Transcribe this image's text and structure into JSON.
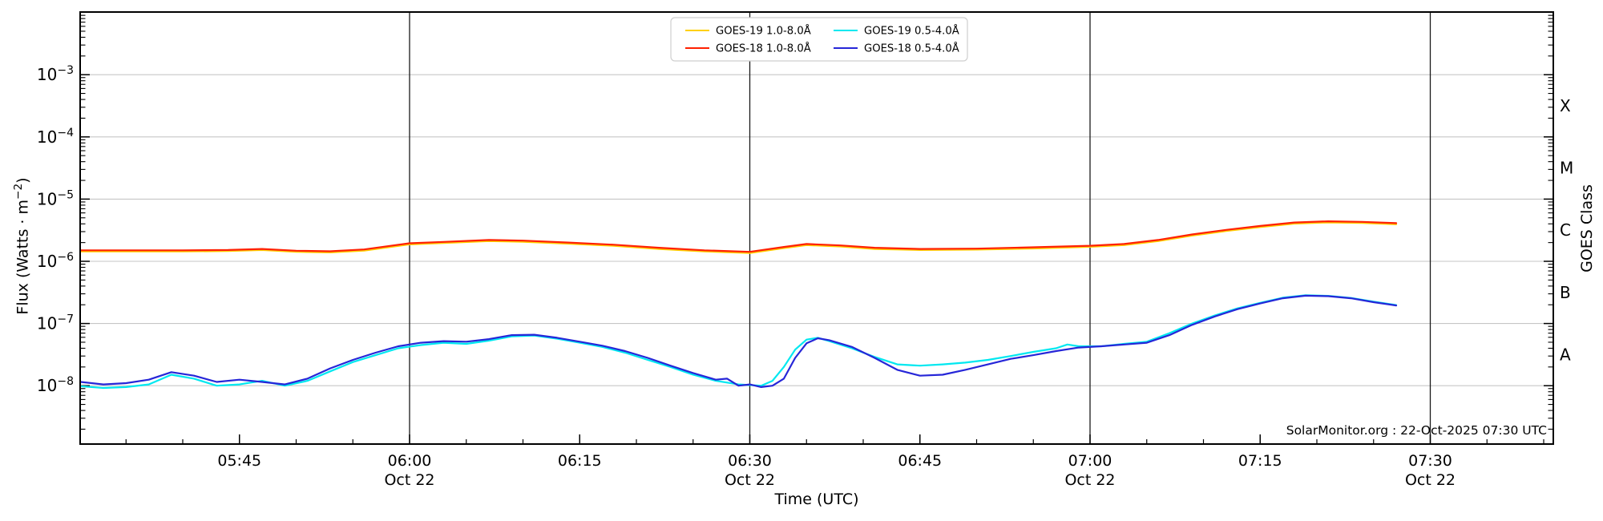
{
  "colors": {
    "background": "#ffffff",
    "frame": "#000000",
    "grid": "#c6c6c6",
    "date_line": "#1a1a1a",
    "legend_border": "#cfcfcf"
  },
  "chart_data": {
    "type": "line",
    "title": "",
    "xlabel": "Time (UTC)",
    "ylabel": {
      "pre": "Flux (Watts · m",
      "sup": "−2",
      "post": ")"
    },
    "ylabel_right": "GOES Class",
    "annotation": "SolarMonitor.org : 22-Oct-2025 07:30 UTC",
    "x_axis": {
      "ticks": [
        "05:45",
        "06:00",
        "06:15",
        "06:30",
        "06:45",
        "07:00",
        "07:15",
        "07:30"
      ],
      "date_ticks": [
        "06:00",
        "06:30",
        "07:00",
        "07:30"
      ],
      "date_label": "Oct 22",
      "range": [
        "05:31",
        "07:41"
      ],
      "minor_tick_minutes": 5
    },
    "y_axis": {
      "scale": "log",
      "tick_exponents": [
        -3,
        -4,
        -5,
        -6,
        -7,
        -8
      ],
      "range_exponents": [
        -9,
        -2
      ],
      "grid": true
    },
    "goes_classes": [
      {
        "label": "X",
        "mid_exponent": -3.5
      },
      {
        "label": "M",
        "mid_exponent": -4.5
      },
      {
        "label": "C",
        "mid_exponent": -5.5
      },
      {
        "label": "B",
        "mid_exponent": -6.5
      },
      {
        "label": "A",
        "mid_exponent": -7.5
      }
    ],
    "legend": {
      "position": "top-center",
      "columns": 2
    },
    "series": [
      {
        "id": "goes19-long",
        "name": "GOES-19 1.0-8.0Å",
        "color": "#ffd000",
        "points": [
          [
            "05:31",
            1.44e-06
          ],
          [
            "05:36",
            1.44e-06
          ],
          [
            "05:40",
            1.44e-06
          ],
          [
            "05:44",
            1.46e-06
          ],
          [
            "05:47",
            1.52e-06
          ],
          [
            "05:50",
            1.42e-06
          ],
          [
            "05:53",
            1.39e-06
          ],
          [
            "05:56",
            1.49e-06
          ],
          [
            "06:00",
            1.87e-06
          ],
          [
            "06:03",
            1.97e-06
          ],
          [
            "06:07",
            2.11e-06
          ],
          [
            "06:10",
            2.06e-06
          ],
          [
            "06:14",
            1.92e-06
          ],
          [
            "06:18",
            1.78e-06
          ],
          [
            "06:22",
            1.58e-06
          ],
          [
            "06:26",
            1.44e-06
          ],
          [
            "06:30",
            1.36e-06
          ],
          [
            "06:33",
            1.63e-06
          ],
          [
            "06:35",
            1.82e-06
          ],
          [
            "06:38",
            1.73e-06
          ],
          [
            "06:41",
            1.58e-06
          ],
          [
            "06:45",
            1.52e-06
          ],
          [
            "06:50",
            1.54e-06
          ],
          [
            "06:55",
            1.61e-06
          ],
          [
            "07:00",
            1.71e-06
          ],
          [
            "07:03",
            1.82e-06
          ],
          [
            "07:06",
            2.11e-06
          ],
          [
            "07:09",
            2.59e-06
          ],
          [
            "07:12",
            3.07e-06
          ],
          [
            "07:15",
            3.55e-06
          ],
          [
            "07:18",
            4.03e-06
          ],
          [
            "07:21",
            4.22e-06
          ],
          [
            "07:24",
            4.13e-06
          ],
          [
            "07:27",
            3.94e-06
          ]
        ]
      },
      {
        "id": "goes18-long",
        "name": "GOES-18 1.0-8.0Å",
        "color": "#ff2000",
        "points": [
          [
            "05:31",
            1.5e-06
          ],
          [
            "05:36",
            1.5e-06
          ],
          [
            "05:40",
            1.5e-06
          ],
          [
            "05:44",
            1.52e-06
          ],
          [
            "05:47",
            1.58e-06
          ],
          [
            "05:50",
            1.48e-06
          ],
          [
            "05:53",
            1.45e-06
          ],
          [
            "05:56",
            1.55e-06
          ],
          [
            "06:00",
            1.95e-06
          ],
          [
            "06:03",
            2.05e-06
          ],
          [
            "06:07",
            2.2e-06
          ],
          [
            "06:10",
            2.15e-06
          ],
          [
            "06:14",
            2e-06
          ],
          [
            "06:18",
            1.85e-06
          ],
          [
            "06:22",
            1.65e-06
          ],
          [
            "06:26",
            1.5e-06
          ],
          [
            "06:30",
            1.42e-06
          ],
          [
            "06:33",
            1.7e-06
          ],
          [
            "06:35",
            1.9e-06
          ],
          [
            "06:38",
            1.8e-06
          ],
          [
            "06:41",
            1.65e-06
          ],
          [
            "06:45",
            1.58e-06
          ],
          [
            "06:50",
            1.6e-06
          ],
          [
            "06:55",
            1.68e-06
          ],
          [
            "07:00",
            1.78e-06
          ],
          [
            "07:03",
            1.9e-06
          ],
          [
            "07:06",
            2.2e-06
          ],
          [
            "07:09",
            2.7e-06
          ],
          [
            "07:12",
            3.2e-06
          ],
          [
            "07:15",
            3.7e-06
          ],
          [
            "07:18",
            4.2e-06
          ],
          [
            "07:21",
            4.4e-06
          ],
          [
            "07:24",
            4.3e-06
          ],
          [
            "07:27",
            4.1e-06
          ]
        ]
      },
      {
        "id": "goes19-short",
        "name": "GOES-19 0.5-4.0Å",
        "color": "#00e8f0",
        "points": [
          [
            "05:31",
            9.8e-09
          ],
          [
            "05:33",
            9.2e-09
          ],
          [
            "05:35",
            9.5e-09
          ],
          [
            "05:37",
            1.05e-08
          ],
          [
            "05:39",
            1.5e-08
          ],
          [
            "05:41",
            1.3e-08
          ],
          [
            "05:43",
            1e-08
          ],
          [
            "05:45",
            1.05e-08
          ],
          [
            "05:47",
            1.2e-08
          ],
          [
            "05:49",
            1e-08
          ],
          [
            "05:51",
            1.2e-08
          ],
          [
            "05:53",
            1.7e-08
          ],
          [
            "05:55",
            2.4e-08
          ],
          [
            "05:57",
            3.1e-08
          ],
          [
            "05:59",
            4e-08
          ],
          [
            "06:01",
            4.5e-08
          ],
          [
            "06:03",
            4.9e-08
          ],
          [
            "06:05",
            4.7e-08
          ],
          [
            "06:07",
            5.3e-08
          ],
          [
            "06:09",
            6.2e-08
          ],
          [
            "06:11",
            6.4e-08
          ],
          [
            "06:13",
            5.7e-08
          ],
          [
            "06:15",
            4.9e-08
          ],
          [
            "06:17",
            4.2e-08
          ],
          [
            "06:19",
            3.4e-08
          ],
          [
            "06:21",
            2.6e-08
          ],
          [
            "06:23",
            2e-08
          ],
          [
            "06:25",
            1.5e-08
          ],
          [
            "06:27",
            1.2e-08
          ],
          [
            "06:29",
            1.05e-08
          ],
          [
            "06:31",
            1e-08
          ],
          [
            "06:32",
            1.2e-08
          ],
          [
            "06:33",
            2e-08
          ],
          [
            "06:34",
            3.8e-08
          ],
          [
            "06:35",
            5.5e-08
          ],
          [
            "06:36",
            5.9e-08
          ],
          [
            "06:37",
            5.2e-08
          ],
          [
            "06:39",
            4e-08
          ],
          [
            "06:41",
            2.9e-08
          ],
          [
            "06:43",
            2.2e-08
          ],
          [
            "06:45",
            2.1e-08
          ],
          [
            "06:47",
            2.2e-08
          ],
          [
            "06:49",
            2.35e-08
          ],
          [
            "06:51",
            2.6e-08
          ],
          [
            "06:53",
            3e-08
          ],
          [
            "06:55",
            3.5e-08
          ],
          [
            "06:57",
            4e-08
          ],
          [
            "06:58",
            4.6e-08
          ],
          [
            "06:59",
            4.3e-08
          ],
          [
            "07:01",
            4.3e-08
          ],
          [
            "07:03",
            4.7e-08
          ],
          [
            "07:05",
            5.1e-08
          ],
          [
            "07:07",
            7e-08
          ],
          [
            "07:09",
            1e-07
          ],
          [
            "07:11",
            1.35e-07
          ],
          [
            "07:13",
            1.75e-07
          ],
          [
            "07:15",
            2.15e-07
          ],
          [
            "07:17",
            2.6e-07
          ],
          [
            "07:19",
            2.85e-07
          ],
          [
            "07:21",
            2.78e-07
          ],
          [
            "07:23",
            2.58e-07
          ],
          [
            "07:25",
            2.25e-07
          ],
          [
            "07:27",
            1.98e-07
          ]
        ]
      },
      {
        "id": "goes18-short",
        "name": "GOES-18 0.5-4.0Å",
        "color": "#2626d8",
        "points": [
          [
            "05:31",
            1.15e-08
          ],
          [
            "05:33",
            1.05e-08
          ],
          [
            "05:35",
            1.1e-08
          ],
          [
            "05:37",
            1.25e-08
          ],
          [
            "05:39",
            1.65e-08
          ],
          [
            "05:41",
            1.45e-08
          ],
          [
            "05:43",
            1.15e-08
          ],
          [
            "05:45",
            1.25e-08
          ],
          [
            "05:47",
            1.15e-08
          ],
          [
            "05:49",
            1.05e-08
          ],
          [
            "05:51",
            1.3e-08
          ],
          [
            "05:53",
            1.9e-08
          ],
          [
            "05:55",
            2.6e-08
          ],
          [
            "05:57",
            3.4e-08
          ],
          [
            "05:59",
            4.3e-08
          ],
          [
            "06:01",
            4.9e-08
          ],
          [
            "06:03",
            5.2e-08
          ],
          [
            "06:05",
            5.1e-08
          ],
          [
            "06:07",
            5.6e-08
          ],
          [
            "06:09",
            6.5e-08
          ],
          [
            "06:11",
            6.6e-08
          ],
          [
            "06:13",
            5.9e-08
          ],
          [
            "06:15",
            5.1e-08
          ],
          [
            "06:17",
            4.4e-08
          ],
          [
            "06:19",
            3.6e-08
          ],
          [
            "06:21",
            2.8e-08
          ],
          [
            "06:23",
            2.1e-08
          ],
          [
            "06:25",
            1.6e-08
          ],
          [
            "06:27",
            1.25e-08
          ],
          [
            "06:28",
            1.3e-08
          ],
          [
            "06:29",
            1e-08
          ],
          [
            "06:30",
            1.05e-08
          ],
          [
            "06:31",
            9.5e-09
          ],
          [
            "06:32",
            1e-08
          ],
          [
            "06:33",
            1.3e-08
          ],
          [
            "06:34",
            2.8e-08
          ],
          [
            "06:35",
            4.8e-08
          ],
          [
            "06:36",
            5.8e-08
          ],
          [
            "06:37",
            5.4e-08
          ],
          [
            "06:39",
            4.2e-08
          ],
          [
            "06:41",
            2.8e-08
          ],
          [
            "06:43",
            1.8e-08
          ],
          [
            "06:45",
            1.45e-08
          ],
          [
            "06:47",
            1.5e-08
          ],
          [
            "06:49",
            1.8e-08
          ],
          [
            "06:51",
            2.2e-08
          ],
          [
            "06:53",
            2.7e-08
          ],
          [
            "06:55",
            3.1e-08
          ],
          [
            "06:57",
            3.6e-08
          ],
          [
            "06:59",
            4.1e-08
          ],
          [
            "07:01",
            4.3e-08
          ],
          [
            "07:03",
            4.6e-08
          ],
          [
            "07:05",
            4.9e-08
          ],
          [
            "07:07",
            6.5e-08
          ],
          [
            "07:09",
            9.5e-08
          ],
          [
            "07:11",
            1.3e-07
          ],
          [
            "07:13",
            1.7e-07
          ],
          [
            "07:15",
            2.1e-07
          ],
          [
            "07:17",
            2.55e-07
          ],
          [
            "07:19",
            2.8e-07
          ],
          [
            "07:21",
            2.75e-07
          ],
          [
            "07:23",
            2.55e-07
          ],
          [
            "07:25",
            2.2e-07
          ],
          [
            "07:27",
            1.95e-07
          ]
        ]
      }
    ]
  }
}
